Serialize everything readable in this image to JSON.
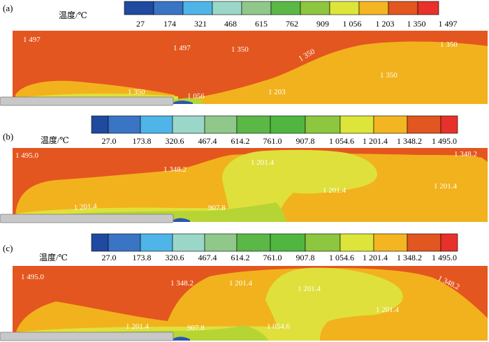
{
  "colors": {
    "red_orange": "#e4561f",
    "orange": "#f2b21d",
    "yellow": "#dfe03c",
    "yellow_green": "#b6d534",
    "green": "#6fbe3a",
    "green_dark": "#3aaf3b",
    "cyan": "#3fb2e6",
    "blue": "#2b56b0",
    "pipe": "#c8c8c8"
  },
  "palette": [
    "#1f4aa0",
    "#3a74c4",
    "#4fb4e8",
    "#9ad7c8",
    "#8fc88a",
    "#5bb847",
    "#4fb640",
    "#8dc63f",
    "#dde53a",
    "#f3b521",
    "#e2561f",
    "#e8312a"
  ],
  "panels": [
    {
      "id": "a",
      "label": "(a)",
      "legend_title": "温度/℃",
      "ticks": [
        "27",
        "174",
        "321",
        "468",
        "615",
        "762",
        "909",
        "1 056",
        "1 203",
        "1 350",
        "1 497"
      ],
      "contour_labels": [
        "1 497",
        "1 497",
        "1 350",
        "1 350",
        "1 350",
        "1 350",
        "1 350",
        "1 203",
        "1 056"
      ]
    },
    {
      "id": "b",
      "label": "(b)",
      "legend_title": "温度/℃",
      "ticks": [
        "27.0",
        "173.8",
        "320.6",
        "467.4",
        "614.2",
        "761.0",
        "907.8",
        "1 054.6",
        "1 201.4",
        "1 348.2",
        "1 495.0"
      ],
      "contour_labels": [
        "1 495.0",
        "1 348.2",
        "1 201.4",
        "1 348.2",
        "1 201.4",
        "1 201.4",
        "1 201.4",
        "907.8"
      ]
    },
    {
      "id": "c",
      "label": "(c)",
      "legend_title": "温度/℃",
      "ticks": [
        "27.0",
        "173.8",
        "320.6",
        "467.4",
        "614.2",
        "761.0",
        "907.8",
        "1 054.6",
        "1 201.4",
        "1 348.2",
        "1 495.0"
      ],
      "contour_labels": [
        "1 495.0",
        "1 348.2",
        "1 201.4",
        "1 201.4",
        "1 348.2",
        "1 201.4",
        "1 201.4",
        "907.8",
        "1 054.6"
      ]
    }
  ]
}
